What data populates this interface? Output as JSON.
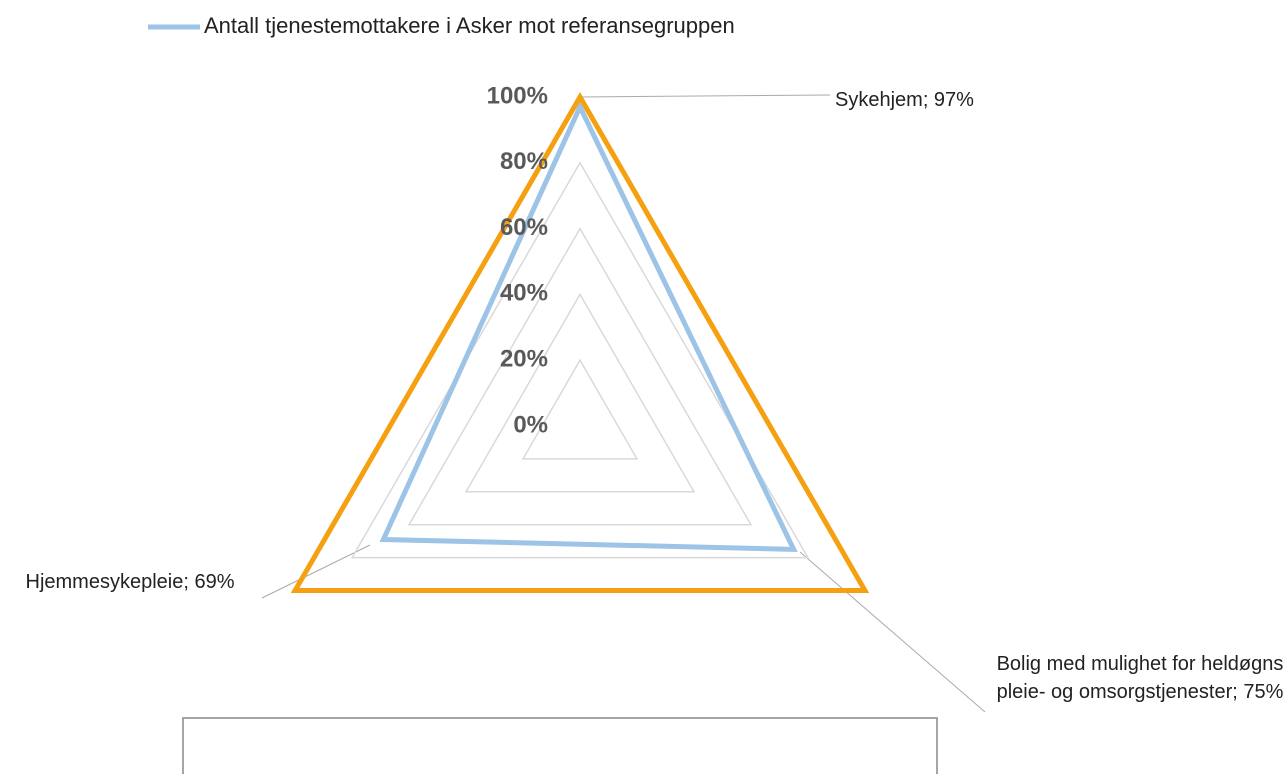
{
  "chart_data": {
    "type": "radar",
    "categories": [
      "Sykehjem",
      "Bolig med mulighet for heldøgns pleie- og omsorgstjenester",
      "Hjemmesykepleie"
    ],
    "series": [
      {
        "name": "Antall tjenestemottakere i Asker mot referansegruppen",
        "color": "#9dc3e6",
        "values": [
          97,
          75,
          69
        ],
        "value_labels": [
          "Sykehjem; 97%",
          "Bolig med mulighet for heldøgns pleie- og omsorgstjenester; 75%",
          "Hjemmesykepleie; 69%"
        ]
      },
      {
        "color": "#f5a011",
        "values": [
          100,
          100,
          100
        ]
      }
    ],
    "rlim": [
      0,
      100
    ],
    "rticks": [
      {
        "value": 0,
        "label": "0%"
      },
      {
        "value": 20,
        "label": "20%"
      },
      {
        "value": 40,
        "label": "40%"
      },
      {
        "value": 60,
        "label": "60%"
      },
      {
        "value": 80,
        "label": "80%"
      },
      {
        "value": 100,
        "label": "100%"
      }
    ],
    "grid": true,
    "legend": "top"
  }
}
